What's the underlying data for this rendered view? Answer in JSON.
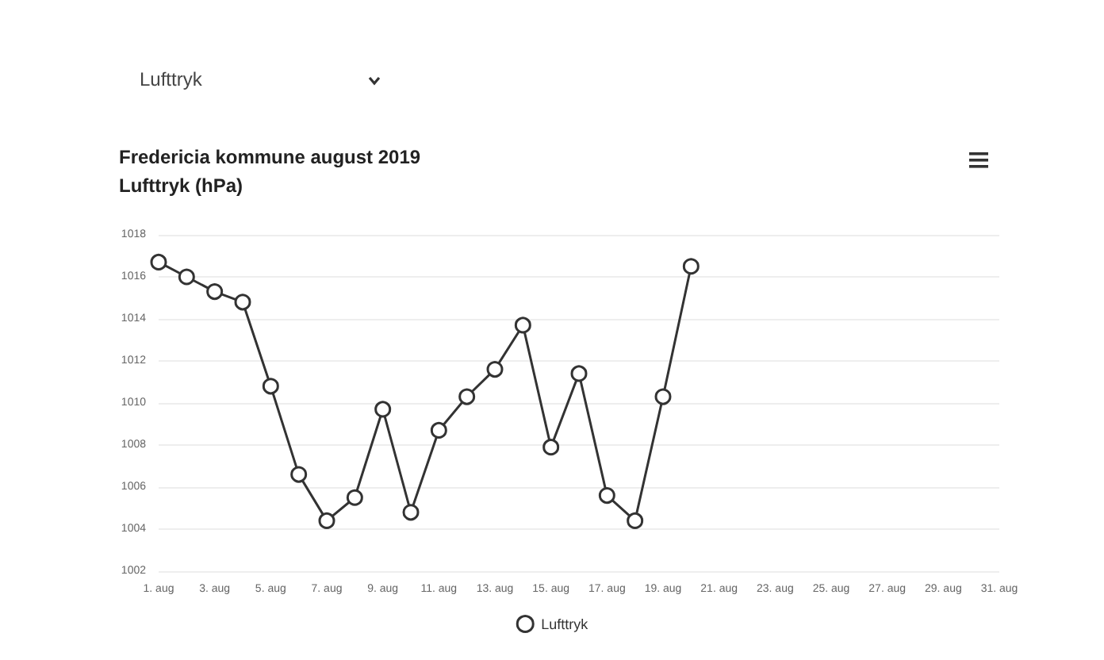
{
  "chart_data": {
    "type": "line",
    "title": "Fredericia kommune august 2019",
    "subtitle": "Lufttryk (hPa)",
    "annotations": [
      "Lufttryk"
    ],
    "categories": [
      "1. aug",
      null,
      "3. aug",
      null,
      "5. aug",
      null,
      "7. aug",
      null,
      "9. aug",
      null,
      "11. aug",
      null,
      "13. aug",
      null,
      "15. aug",
      null,
      "17. aug",
      null,
      "19. aug",
      null,
      "21. aug",
      null,
      "23. aug",
      null,
      "25. aug",
      null,
      "27. aug",
      null,
      "29. aug",
      null,
      "31. aug"
    ],
    "series": [
      {
        "name": "Lufttryk",
        "color": "#333333",
        "values": [
          1016.7,
          1016.0,
          1015.3,
          1014.8,
          1010.8,
          1006.6,
          1004.4,
          1005.5,
          1009.7,
          1004.8,
          1008.7,
          1010.3,
          1011.6,
          1013.7,
          1007.9,
          1011.4,
          1005.6,
          1004.4,
          1010.3,
          1016.5,
          null,
          null,
          null,
          null,
          null,
          null,
          null,
          null,
          null,
          null,
          null
        ]
      }
    ],
    "ylim": [
      1002,
      1018
    ],
    "yticks": [
      1002,
      1004,
      1006,
      1008,
      1010,
      1012,
      1014,
      1016,
      1018
    ],
    "grid": "y",
    "legend": "bottom",
    "marker": "circle",
    "line_style": "solid"
  }
}
